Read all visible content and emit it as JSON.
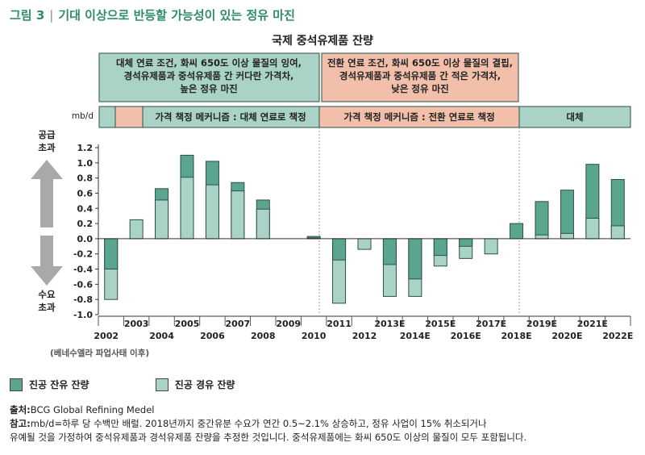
{
  "figure": {
    "label": "그림 3",
    "title": "기대 이상으로 반등할 가능성이 있는 정유 마진"
  },
  "colors": {
    "dark": "#5aa58f",
    "light": "#a9d3c6",
    "box_green": "#a9d3c6",
    "box_pink": "#f2c0aa",
    "border": "#2d4f47"
  },
  "annotations": {
    "box_left": [
      "대체 연료 조건, 화씨 650도 이상 물질의 잉여,",
      "경석유제품과 중석유제품 간 커다란 가격차,",
      "높은 정유 마진"
    ],
    "box_right": [
      "전환 연료 조건, 화씨 650도 이상 물질의 결핍,",
      "경석유제품과 중석유제품 간 적은 가격차,",
      "낮은 정유 마진"
    ],
    "band_left": "가격 책정 메커니즘 : 대체 연료로 책정",
    "band_mid": "가격 책정 메커니즘 : 전환 연료로 책정",
    "band_right": "대체",
    "surplus_label": [
      "공급",
      "초과"
    ],
    "demand_label": [
      "수요",
      "초과"
    ],
    "baseline_note": "(베네수엘라 파업사태 이후)"
  },
  "chart_data": {
    "type": "bar",
    "title": "국제 중석유제품 잔량",
    "ylabel": "mb/d",
    "ylim": [
      -1.0,
      1.2
    ],
    "yticks": [
      "1.2",
      "1.0",
      "0.8",
      "0.6",
      "0.4",
      "0.2",
      "0.0",
      "-0.2",
      "-0.4",
      "-0.6",
      "-0.8",
      "-1.0"
    ],
    "categories": [
      "2002",
      "2003",
      "2004",
      "2005",
      "2006",
      "2007",
      "2008",
      "2009",
      "2010",
      "2011",
      "2012",
      "2013E",
      "2014E",
      "2015E",
      "2016E",
      "2017E",
      "2018E",
      "2019E",
      "2020E",
      "2021E",
      "2022E"
    ],
    "series": [
      {
        "name": "진공 잔유 잔량",
        "values": [
          -0.4,
          0.0,
          0.66,
          1.1,
          1.02,
          0.74,
          0.51,
          0.0,
          0.03,
          -0.28,
          0.08,
          -0.34,
          -0.53,
          -0.22,
          -0.1,
          0.03,
          0.2,
          0.49,
          0.64,
          0.98,
          0.78
        ]
      },
      {
        "name": "진공 경유 잔량",
        "values": [
          -0.8,
          0.25,
          0.51,
          0.81,
          0.71,
          0.63,
          0.39,
          0.0,
          0.01,
          -0.85,
          -0.14,
          -0.76,
          -0.76,
          -0.36,
          -0.26,
          -0.2,
          -0.12,
          0.05,
          0.07,
          0.27,
          0.17
        ]
      }
    ]
  },
  "legend": {
    "dark_label": "진공 잔유 잔량",
    "light_label": "진공 경유 잔량"
  },
  "notes": {
    "source_label": "출처:",
    "source_text": "BCG Global Refining Medel",
    "note_label": "참고:",
    "note_line1": "mb/d=하루 당 수백만 배럴. 2018년까지 중간유분 수요가 연간 0.5~2.1% 상승하고, 정유 사업이 15% 취소되거나",
    "note_line2": "유예될 것을 가정하여 중석유제품과 경석유제품 잔량을 추정한 것입니다. 중석유제품에는 화씨 650도 이상의 물질이 모두 포함됩니다."
  }
}
